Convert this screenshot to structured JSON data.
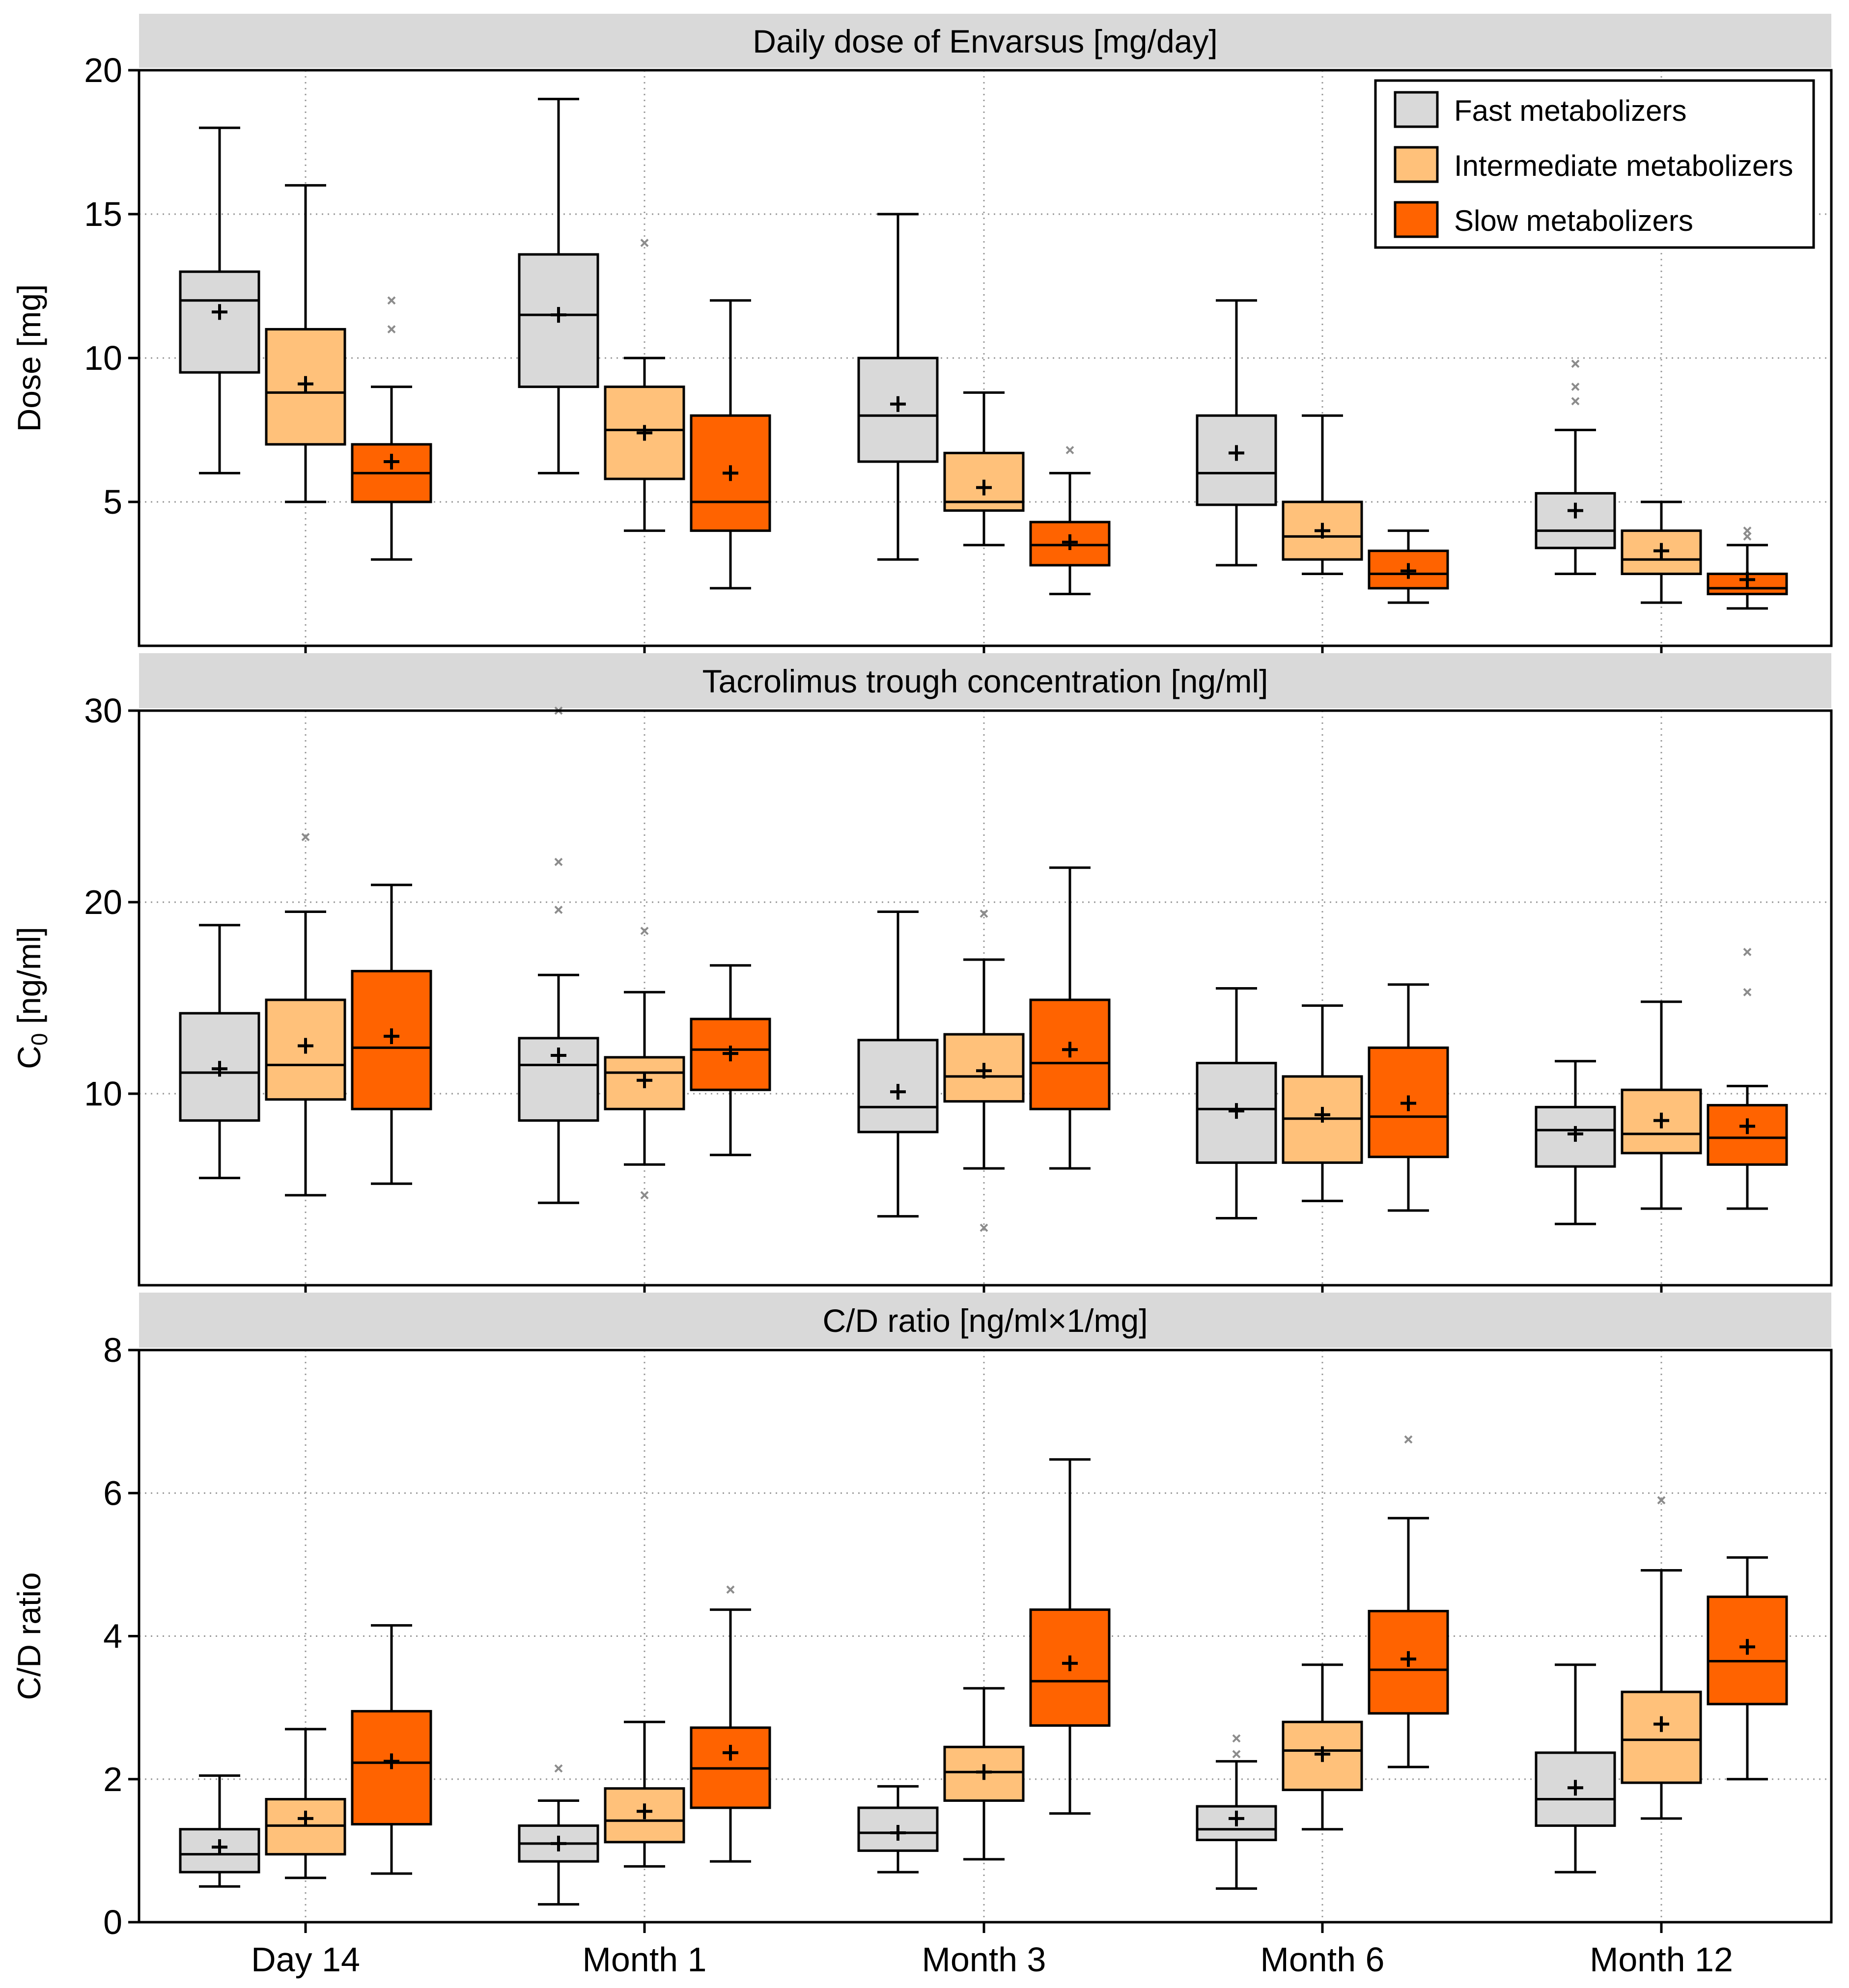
{
  "chart_data": [
    {
      "type": "boxplot",
      "title": "Daily dose of Envarsus [mg/day]",
      "ylabel": "Dose [mg]",
      "ylabel_sub": "",
      "ylabel_rest": "",
      "ylim": [
        0,
        20
      ],
      "yticks": [
        5,
        10,
        15,
        20
      ],
      "categories": [
        "Day 14",
        "Month 1",
        "Month 3",
        "Month 6",
        "Month 12"
      ],
      "show_legend": true,
      "show_xticklabels": false,
      "series": [
        {
          "name": "Fast metabolizers",
          "boxes": [
            {
              "whislo": 6.0,
              "q1": 9.5,
              "med": 12.0,
              "q3": 13.0,
              "whishi": 18.0,
              "mean": 11.6,
              "fliers": []
            },
            {
              "whislo": 6.0,
              "q1": 9.0,
              "med": 11.5,
              "q3": 13.6,
              "whishi": 19.0,
              "mean": 11.5,
              "fliers": []
            },
            {
              "whislo": 3.0,
              "q1": 6.4,
              "med": 8.0,
              "q3": 10.0,
              "whishi": 15.0,
              "mean": 8.4,
              "fliers": []
            },
            {
              "whislo": 2.8,
              "q1": 4.9,
              "med": 6.0,
              "q3": 8.0,
              "whishi": 12.0,
              "mean": 6.7,
              "fliers": []
            },
            {
              "whislo": 2.5,
              "q1": 3.4,
              "med": 4.0,
              "q3": 5.3,
              "whishi": 7.5,
              "mean": 4.7,
              "fliers": [
                8.5,
                9.0,
                9.8
              ]
            }
          ]
        },
        {
          "name": "Intermediate metabolizers",
          "boxes": [
            {
              "whislo": 5.0,
              "q1": 7.0,
              "med": 8.8,
              "q3": 11.0,
              "whishi": 16.0,
              "mean": 9.1,
              "fliers": []
            },
            {
              "whislo": 4.0,
              "q1": 5.8,
              "med": 7.5,
              "q3": 9.0,
              "whishi": 10.0,
              "mean": 7.4,
              "fliers": [
                14.0
              ]
            },
            {
              "whislo": 3.5,
              "q1": 4.7,
              "med": 5.0,
              "q3": 6.7,
              "whishi": 8.8,
              "mean": 5.5,
              "fliers": []
            },
            {
              "whislo": 2.5,
              "q1": 3.0,
              "med": 3.8,
              "q3": 5.0,
              "whishi": 8.0,
              "mean": 4.0,
              "fliers": []
            },
            {
              "whislo": 1.5,
              "q1": 2.5,
              "med": 3.0,
              "q3": 4.0,
              "whishi": 5.0,
              "mean": 3.3,
              "fliers": []
            }
          ]
        },
        {
          "name": "Slow metabolizers",
          "boxes": [
            {
              "whislo": 3.0,
              "q1": 5.0,
              "med": 6.0,
              "q3": 7.0,
              "whishi": 9.0,
              "mean": 6.4,
              "fliers": [
                11.0,
                12.0
              ]
            },
            {
              "whislo": 2.0,
              "q1": 4.0,
              "med": 5.0,
              "q3": 8.0,
              "whishi": 12.0,
              "mean": 6.0,
              "fliers": []
            },
            {
              "whislo": 1.8,
              "q1": 2.8,
              "med": 3.5,
              "q3": 4.3,
              "whishi": 6.0,
              "mean": 3.6,
              "fliers": [
                6.8
              ]
            },
            {
              "whislo": 1.5,
              "q1": 2.0,
              "med": 2.5,
              "q3": 3.3,
              "whishi": 4.0,
              "mean": 2.6,
              "fliers": []
            },
            {
              "whislo": 1.3,
              "q1": 1.8,
              "med": 2.0,
              "q3": 2.5,
              "whishi": 3.5,
              "mean": 2.3,
              "fliers": [
                3.8,
                4.0
              ]
            }
          ]
        }
      ]
    },
    {
      "type": "boxplot",
      "title": "Tacrolimus trough concentration [ng/ml]",
      "ylabel": "",
      "ylabel_main": "C",
      "ylabel_sub": "0",
      "ylabel_rest": " [ng/ml]",
      "ylim": [
        0,
        30
      ],
      "yticks": [
        10,
        20,
        30
      ],
      "categories": [
        "Day 14",
        "Month 1",
        "Month 3",
        "Month 6",
        "Month 12"
      ],
      "show_legend": false,
      "show_xticklabels": false,
      "series": [
        {
          "name": "Fast metabolizers",
          "boxes": [
            {
              "whislo": 5.6,
              "q1": 8.6,
              "med": 11.1,
              "q3": 14.2,
              "whishi": 18.8,
              "mean": 11.3,
              "fliers": []
            },
            {
              "whislo": 4.3,
              "q1": 8.6,
              "med": 11.5,
              "q3": 12.9,
              "whishi": 16.2,
              "mean": 12.0,
              "fliers": [
                19.6,
                22.1,
                30.0
              ]
            },
            {
              "whislo": 3.6,
              "q1": 8.0,
              "med": 9.3,
              "q3": 12.8,
              "whishi": 19.5,
              "mean": 10.1,
              "fliers": []
            },
            {
              "whislo": 3.5,
              "q1": 6.4,
              "med": 9.2,
              "q3": 11.6,
              "whishi": 15.5,
              "mean": 9.1,
              "fliers": []
            },
            {
              "whislo": 3.2,
              "q1": 6.2,
              "med": 8.1,
              "q3": 9.3,
              "whishi": 11.7,
              "mean": 7.9,
              "fliers": []
            }
          ]
        },
        {
          "name": "Intermediate metabolizers",
          "boxes": [
            {
              "whislo": 4.7,
              "q1": 9.7,
              "med": 11.5,
              "q3": 14.9,
              "whishi": 19.5,
              "mean": 12.5,
              "fliers": [
                23.4
              ]
            },
            {
              "whislo": 6.3,
              "q1": 9.2,
              "med": 11.1,
              "q3": 11.9,
              "whishi": 15.3,
              "mean": 10.7,
              "fliers": [
                4.7,
                18.5
              ]
            },
            {
              "whislo": 6.1,
              "q1": 9.6,
              "med": 10.9,
              "q3": 13.1,
              "whishi": 17.0,
              "mean": 11.2,
              "fliers": [
                3.0,
                19.4
              ]
            },
            {
              "whislo": 4.4,
              "q1": 6.4,
              "med": 8.7,
              "q3": 10.9,
              "whishi": 14.6,
              "mean": 8.9,
              "fliers": []
            },
            {
              "whislo": 4.0,
              "q1": 6.9,
              "med": 7.9,
              "q3": 10.2,
              "whishi": 14.8,
              "mean": 8.6,
              "fliers": []
            }
          ]
        },
        {
          "name": "Slow metabolizers",
          "boxes": [
            {
              "whislo": 5.3,
              "q1": 9.2,
              "med": 12.4,
              "q3": 16.4,
              "whishi": 20.9,
              "mean": 13.0,
              "fliers": []
            },
            {
              "whislo": 6.8,
              "q1": 10.2,
              "med": 12.3,
              "q3": 13.9,
              "whishi": 16.7,
              "mean": 12.1,
              "fliers": []
            },
            {
              "whislo": 6.1,
              "q1": 9.2,
              "med": 11.6,
              "q3": 14.9,
              "whishi": 21.8,
              "mean": 12.3,
              "fliers": []
            },
            {
              "whislo": 3.9,
              "q1": 6.7,
              "med": 8.8,
              "q3": 12.4,
              "whishi": 15.7,
              "mean": 9.5,
              "fliers": []
            },
            {
              "whislo": 4.0,
              "q1": 6.3,
              "med": 7.7,
              "q3": 9.4,
              "whishi": 10.4,
              "mean": 8.3,
              "fliers": [
                15.3,
                17.4
              ]
            }
          ]
        }
      ]
    },
    {
      "type": "boxplot",
      "title": "C/D ratio [ng/ml×1/mg]",
      "ylabel": "C/D ratio",
      "ylabel_sub": "",
      "ylabel_rest": "",
      "ylim": [
        0,
        8
      ],
      "yticks": [
        0,
        2,
        4,
        6,
        8
      ],
      "categories": [
        "Day 14",
        "Month 1",
        "Month 3",
        "Month 6",
        "Month 12"
      ],
      "show_legend": false,
      "show_xticklabels": true,
      "series": [
        {
          "name": "Fast metabolizers",
          "boxes": [
            {
              "whislo": 0.5,
              "q1": 0.7,
              "med": 0.95,
              "q3": 1.3,
              "whishi": 2.05,
              "mean": 1.05,
              "fliers": []
            },
            {
              "whislo": 0.25,
              "q1": 0.85,
              "med": 1.1,
              "q3": 1.35,
              "whishi": 1.7,
              "mean": 1.1,
              "fliers": [
                2.15
              ]
            },
            {
              "whislo": 0.7,
              "q1": 1.0,
              "med": 1.25,
              "q3": 1.6,
              "whishi": 1.9,
              "mean": 1.25,
              "fliers": []
            },
            {
              "whislo": 0.47,
              "q1": 1.15,
              "med": 1.3,
              "q3": 1.62,
              "whishi": 2.25,
              "mean": 1.45,
              "fliers": [
                2.35,
                2.57
              ]
            },
            {
              "whislo": 0.7,
              "q1": 1.35,
              "med": 1.72,
              "q3": 2.37,
              "whishi": 3.6,
              "mean": 1.88,
              "fliers": []
            }
          ]
        },
        {
          "name": "Intermediate metabolizers",
          "boxes": [
            {
              "whislo": 0.62,
              "q1": 0.95,
              "med": 1.35,
              "q3": 1.72,
              "whishi": 2.7,
              "mean": 1.45,
              "fliers": []
            },
            {
              "whislo": 0.78,
              "q1": 1.12,
              "med": 1.42,
              "q3": 1.87,
              "whishi": 2.8,
              "mean": 1.55,
              "fliers": []
            },
            {
              "whislo": 0.88,
              "q1": 1.7,
              "med": 2.1,
              "q3": 2.45,
              "whishi": 3.27,
              "mean": 2.1,
              "fliers": []
            },
            {
              "whislo": 1.3,
              "q1": 1.85,
              "med": 2.4,
              "q3": 2.8,
              "whishi": 3.6,
              "mean": 2.35,
              "fliers": []
            },
            {
              "whislo": 1.45,
              "q1": 1.95,
              "med": 2.55,
              "q3": 3.22,
              "whishi": 4.92,
              "mean": 2.77,
              "fliers": [
                5.9
              ]
            }
          ]
        },
        {
          "name": "Slow metabolizers",
          "boxes": [
            {
              "whislo": 0.68,
              "q1": 1.37,
              "med": 2.23,
              "q3": 2.95,
              "whishi": 4.15,
              "mean": 2.25,
              "fliers": []
            },
            {
              "whislo": 0.85,
              "q1": 1.6,
              "med": 2.15,
              "q3": 2.72,
              "whishi": 4.37,
              "mean": 2.37,
              "fliers": [
                4.65
              ]
            },
            {
              "whislo": 1.52,
              "q1": 2.75,
              "med": 3.37,
              "q3": 4.37,
              "whishi": 6.47,
              "mean": 3.62,
              "fliers": []
            },
            {
              "whislo": 2.17,
              "q1": 2.92,
              "med": 3.53,
              "q3": 4.35,
              "whishi": 5.65,
              "mean": 3.68,
              "fliers": [
                6.75
              ]
            },
            {
              "whislo": 2.0,
              "q1": 3.05,
              "med": 3.65,
              "q3": 4.55,
              "whishi": 5.1,
              "mean": 3.85,
              "fliers": []
            }
          ]
        }
      ]
    }
  ],
  "legend": {
    "items": [
      {
        "label": "Fast metabolizers",
        "color": "#d9d9d9"
      },
      {
        "label": "Intermediate metabolizers",
        "color": "#ffc17a"
      },
      {
        "label": "Slow metabolizers",
        "color": "#ff6300"
      }
    ]
  },
  "colors": {
    "fast": "#d9d9d9",
    "intermediate": "#ffc17a",
    "slow": "#ff6300",
    "strip": "#d9d9d9",
    "grid": "#9a9a9a",
    "flier": "#8c8c8c"
  }
}
